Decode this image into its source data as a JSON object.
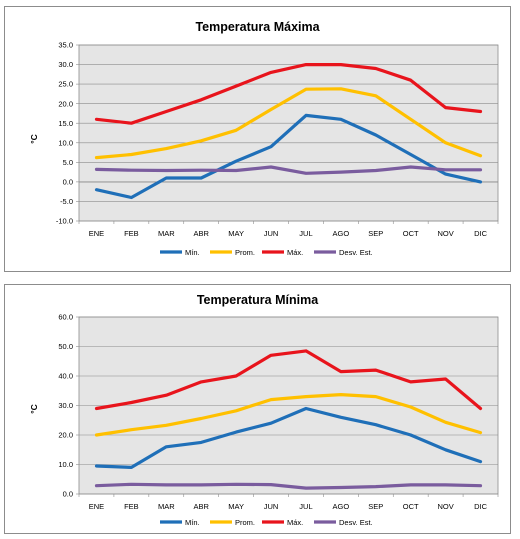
{
  "chart_data": [
    {
      "type": "line",
      "title": "Temperatura Máxima",
      "ylabel": "°C",
      "xlabel": "",
      "ylim": [
        -10,
        35
      ],
      "yticks": [
        "35.0",
        "30.0",
        "25.0",
        "20.0",
        "15.0",
        "10.0",
        "5.0",
        "0.0",
        "-5.0",
        "-10.0"
      ],
      "categories": [
        "ENE",
        "FEB",
        "MAR",
        "ABR",
        "MAY",
        "JUN",
        "JUL",
        "AGO",
        "SEP",
        "OCT",
        "NOV",
        "DIC"
      ],
      "grid": true,
      "legend_position": "bottom",
      "series": [
        {
          "name": "Mín.",
          "color": "#1f6fb8",
          "values": [
            -2,
            -4,
            1,
            1,
            5.3,
            9,
            17,
            16,
            12,
            7,
            2,
            0
          ]
        },
        {
          "name": "Prom.",
          "color": "#ffc000",
          "values": [
            6.2,
            7,
            8.5,
            10.5,
            13.2,
            18.5,
            23.7,
            23.8,
            22,
            16,
            10,
            6.7
          ]
        },
        {
          "name": "Máx.",
          "color": "#e8141c",
          "values": [
            16,
            15,
            18,
            21,
            24.5,
            28,
            30,
            30,
            29,
            26,
            19,
            18
          ]
        },
        {
          "name": "Desv. Est.",
          "color": "#7a5c9e",
          "values": [
            3.2,
            3,
            2.9,
            3,
            2.9,
            3.8,
            2.2,
            2.5,
            2.9,
            3.8,
            3.1,
            3.1
          ]
        }
      ]
    },
    {
      "type": "line",
      "title": "Temperatura Mínima",
      "ylabel": "°C",
      "xlabel": "",
      "ylim": [
        0,
        60
      ],
      "yticks": [
        "60.0",
        "50.0",
        "40.0",
        "30.0",
        "20.0",
        "10.0",
        "0.0"
      ],
      "categories": [
        "ENE",
        "FEB",
        "MAR",
        "ABR",
        "MAY",
        "JUN",
        "JUL",
        "AGO",
        "SEP",
        "OCT",
        "NOV",
        "DIC"
      ],
      "grid": true,
      "legend_position": "bottom",
      "series": [
        {
          "name": "Mín.",
          "color": "#1f6fb8",
          "values": [
            9.5,
            9,
            16,
            17.5,
            21,
            24,
            29,
            26,
            23.5,
            20,
            15,
            11
          ]
        },
        {
          "name": "Prom.",
          "color": "#ffc000",
          "values": [
            20,
            21.8,
            23.3,
            25.6,
            28.2,
            32,
            33,
            33.7,
            33,
            29.5,
            24.3,
            20.8
          ]
        },
        {
          "name": "Máx.",
          "color": "#e8141c",
          "values": [
            29,
            31,
            33.5,
            38,
            40,
            47,
            48.5,
            41.5,
            42,
            38,
            39,
            29
          ]
        },
        {
          "name": "Desv. Est.",
          "color": "#7a5c9e",
          "values": [
            2.8,
            3.3,
            3.1,
            3.1,
            3.3,
            3.2,
            2,
            2.2,
            2.5,
            3.1,
            3.1,
            2.8
          ]
        }
      ]
    }
  ]
}
